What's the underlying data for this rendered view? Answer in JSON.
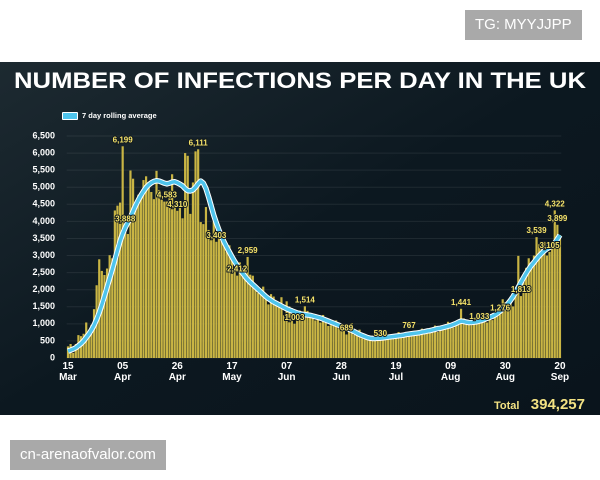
{
  "watermarks": [
    "TG: MYYJJPP",
    "cn-arenaofvalor.com"
  ],
  "chart_data": {
    "type": "bar",
    "title": "NUMBER OF INFECTIONS PER DAY IN THE UK",
    "color": "#c9b544",
    "grid": true,
    "ylim": [
      0,
      6500
    ],
    "yticks": [
      0,
      500,
      {
        "value": 1000,
        "label": "1,000"
      },
      {
        "value": 1500,
        "label": "1,500"
      },
      {
        "value": 2000,
        "label": "2,000"
      },
      {
        "value": 2500,
        "label": "2,500"
      },
      {
        "value": 3000,
        "label": "3,000"
      },
      {
        "value": 3500,
        "label": "3,500"
      },
      {
        "value": 4000,
        "label": "4,000"
      },
      {
        "value": 4500,
        "label": "4,500"
      },
      {
        "value": 5000,
        "label": "5,000"
      },
      {
        "value": 5500,
        "label": "5,500"
      },
      {
        "value": 6000,
        "label": "6,000"
      },
      {
        "value": 6500,
        "label": "6,500"
      }
    ],
    "categories": [
      "15 Mar",
      null,
      null,
      null,
      null,
      null,
      null,
      null,
      null,
      null,
      null,
      null,
      null,
      null,
      null,
      null,
      null,
      null,
      null,
      null,
      null,
      "05 Apr",
      null,
      null,
      null,
      null,
      null,
      null,
      null,
      null,
      null,
      null,
      null,
      null,
      null,
      null,
      null,
      null,
      null,
      null,
      null,
      null,
      "26 Apr",
      null,
      null,
      null,
      null,
      null,
      null,
      null,
      null,
      null,
      null,
      null,
      null,
      null,
      null,
      null,
      null,
      null,
      null,
      null,
      null,
      "17 May",
      null,
      null,
      null,
      null,
      null,
      null,
      null,
      null,
      null,
      null,
      null,
      null,
      null,
      null,
      null,
      null,
      null,
      null,
      null,
      null,
      "07 Jun",
      null,
      null,
      null,
      null,
      null,
      null,
      null,
      null,
      null,
      null,
      null,
      null,
      null,
      null,
      null,
      null,
      null,
      null,
      null,
      null,
      "28 Jun",
      null,
      null,
      null,
      null,
      null,
      null,
      null,
      null,
      null,
      null,
      null,
      null,
      null,
      null,
      null,
      null,
      null,
      null,
      null,
      null,
      "19 Jul",
      null,
      null,
      null,
      null,
      null,
      null,
      null,
      null,
      null,
      null,
      null,
      null,
      null,
      null,
      null,
      null,
      null,
      null,
      null,
      null,
      "09 Aug",
      null,
      null,
      null,
      null,
      null,
      null,
      null,
      null,
      null,
      null,
      null,
      null,
      null,
      null,
      null,
      null,
      null,
      null,
      null,
      null,
      "30 Aug",
      null,
      null,
      null,
      null,
      null,
      null,
      null,
      null,
      null,
      null,
      null,
      null,
      null,
      null,
      null,
      null,
      null,
      null,
      null,
      null,
      "20 Sep"
    ],
    "values": [
      340,
      410,
      150,
      410,
      670,
      640,
      710,
      1040,
      660,
      970,
      1430,
      2130,
      2890,
      2550,
      2430,
      2620,
      3010,
      2920,
      4320,
      4460,
      4550,
      6199,
      3888,
      3630,
      5490,
      5250,
      4340,
      4780,
      4700,
      5210,
      5320,
      4990,
      4860,
      4650,
      5480,
      4920,
      4680,
      4580,
      4583,
      4900,
      5380,
      4460,
      4310,
      4460,
      4090,
      6000,
      5920,
      4220,
      5140,
      6050,
      6111,
      3980,
      3920,
      4420,
      3750,
      3490,
      3990,
      3403,
      3870,
      3450,
      3510,
      3110,
      3300,
      2950,
      2560,
      2412,
      2800,
      2630,
      2480,
      2959,
      2440,
      2410,
      2090,
      1900,
      2010,
      2090,
      1880,
      1570,
      1870,
      1800,
      1590,
      1620,
      1780,
      1250,
      1660,
      1510,
      1460,
      1003,
      1240,
      1390,
      1360,
      1514,
      1380,
      1220,
      1220,
      1100,
      1230,
      1040,
      1260,
      1120,
      940,
      960,
      1020,
      1100,
      870,
      910,
      890,
      689,
      810,
      1020,
      680,
      670,
      830,
      580,
      580,
      560,
      630,
      650,
      620,
      520,
      530,
      550,
      640,
      590,
      670,
      600,
      570,
      760,
      680,
      720,
      690,
      767,
      760,
      790,
      690,
      750,
      860,
      740,
      800,
      880,
      850,
      950,
      760,
      890,
      910,
      880,
      1060,
      870,
      890,
      1000,
      1100,
      1441,
      1160,
      1010,
      1060,
      960,
      1040,
      1080,
      1033,
      1180,
      1170,
      1040,
      1210,
      1110,
      1230,
      1280,
      1276,
      1720,
      1630,
      1500,
      1710,
      1510,
      1810,
      2990,
      1813,
      2460,
      2640,
      2920,
      2620,
      3000,
      3539,
      3330,
      3390,
      3400,
      3000,
      3105,
      3390,
      4322,
      3899,
      3600
    ],
    "value_labels": [
      null,
      null,
      null,
      null,
      null,
      null,
      null,
      null,
      null,
      null,
      null,
      null,
      null,
      null,
      null,
      null,
      null,
      null,
      null,
      null,
      null,
      "6,199",
      "3,888",
      null,
      null,
      null,
      null,
      null,
      null,
      null,
      null,
      null,
      null,
      null,
      null,
      null,
      null,
      null,
      "4,583",
      null,
      null,
      null,
      "4,310",
      null,
      null,
      null,
      null,
      null,
      null,
      null,
      "6,111",
      null,
      null,
      null,
      null,
      null,
      null,
      "3,403",
      null,
      null,
      null,
      null,
      null,
      null,
      null,
      "2,412",
      null,
      null,
      null,
      "2,959",
      null,
      null,
      null,
      null,
      null,
      null,
      null,
      null,
      null,
      null,
      null,
      null,
      null,
      null,
      null,
      null,
      null,
      "1,003",
      null,
      null,
      null,
      "1,514",
      null,
      null,
      null,
      null,
      null,
      null,
      null,
      null,
      null,
      null,
      null,
      null,
      null,
      null,
      null,
      "689",
      null,
      null,
      null,
      null,
      null,
      null,
      null,
      null,
      null,
      null,
      null,
      null,
      "530",
      null,
      null,
      null,
      null,
      null,
      null,
      null,
      null,
      null,
      null,
      "767",
      null,
      null,
      null,
      null,
      null,
      null,
      null,
      null,
      null,
      null,
      null,
      null,
      null,
      null,
      null,
      null,
      null,
      null,
      null,
      "1,441",
      null,
      null,
      null,
      null,
      null,
      null,
      "1,033",
      null,
      null,
      null,
      null,
      null,
      null,
      null,
      "1,276",
      null,
      null,
      null,
      null,
      null,
      null,
      null,
      "1,813",
      null,
      null,
      null,
      null,
      null,
      "3,539",
      null,
      null,
      null,
      null,
      "3,105",
      null,
      "4,322",
      "3,899",
      null
    ],
    "rolling_average": {
      "name": "7 day rolling average",
      "color": "#4fc4ec",
      "values": [
        200,
        230,
        260,
        300,
        360,
        420,
        500,
        600,
        700,
        820,
        960,
        1130,
        1330,
        1560,
        1810,
        2070,
        2330,
        2590,
        2870,
        3150,
        3420,
        3640,
        3820,
        3970,
        4120,
        4300,
        4470,
        4620,
        4760,
        4880,
        4990,
        5070,
        5130,
        5170,
        5190,
        5180,
        5150,
        5120,
        5100,
        5120,
        5150,
        5160,
        5130,
        5090,
        5040,
        4960,
        4900,
        4890,
        4920,
        5000,
        5100,
        5180,
        5120,
        4960,
        4720,
        4450,
        4180,
        3950,
        3740,
        3560,
        3390,
        3240,
        3100,
        2960,
        2830,
        2710,
        2600,
        2490,
        2390,
        2300,
        2220,
        2150,
        2080,
        2010,
        1940,
        1870,
        1800,
        1740,
        1690,
        1640,
        1600,
        1560,
        1520,
        1480,
        1440,
        1410,
        1380,
        1350,
        1320,
        1300,
        1280,
        1270,
        1260,
        1250,
        1230,
        1210,
        1190,
        1170,
        1140,
        1110,
        1080,
        1050,
        1020,
        990,
        960,
        930,
        900,
        870,
        840,
        810,
        770,
        730,
        690,
        660,
        630,
        600,
        580,
        570,
        570,
        580,
        580,
        590,
        600,
        610,
        620,
        630,
        640,
        650,
        660,
        670,
        690,
        700,
        710,
        720,
        730,
        740,
        760,
        770,
        790,
        800,
        820,
        840,
        860,
        870,
        890,
        910,
        930,
        950,
        980,
        1010,
        1050,
        1080,
        1070,
        1050,
        1040,
        1040,
        1050,
        1060,
        1080,
        1100,
        1130,
        1160,
        1190,
        1220,
        1260,
        1310,
        1370,
        1440,
        1510,
        1590,
        1690,
        1800,
        1930,
        2070,
        2210,
        2350,
        2480,
        2600,
        2710,
        2800,
        2900,
        2990,
        3070,
        3140,
        3200,
        3240,
        3290,
        3370,
        3480,
        3600
      ]
    },
    "total": {
      "label": "Total",
      "value": "394,257"
    }
  }
}
